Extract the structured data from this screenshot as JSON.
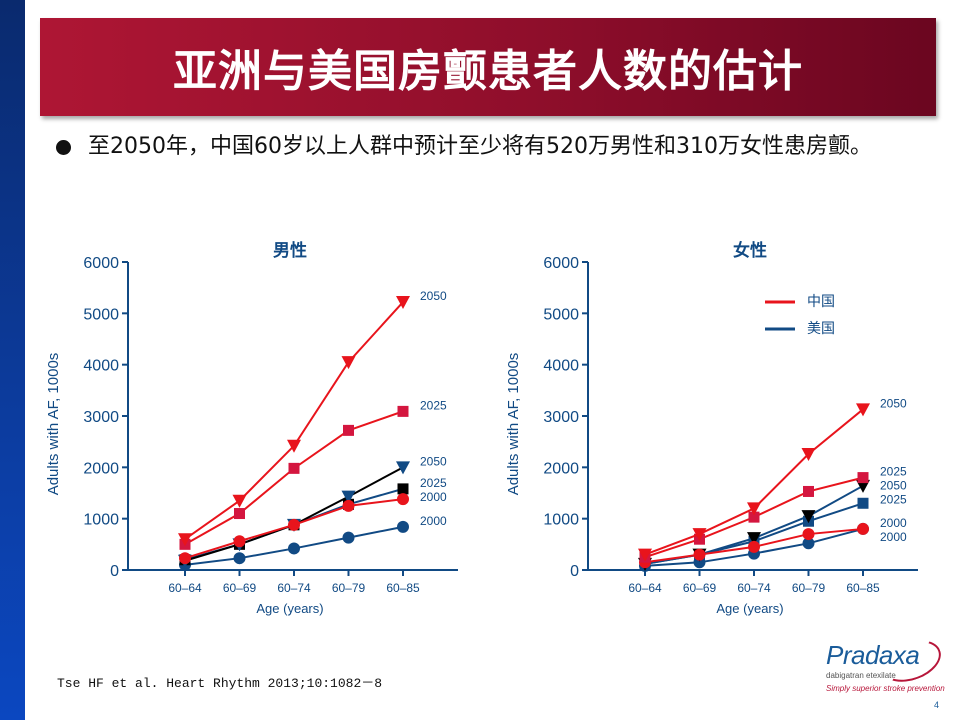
{
  "slide": {
    "title": "亚洲与美国房颤患者人数的估计",
    "bullet": "至2050年，中国60岁以上人群中预计至少将有520万男性和310万女性患房颤。",
    "citation": "Tse HF et al. Heart Rhythm 2013;10:1082－8",
    "page_number": "4",
    "logo": {
      "name": "Pradaxa",
      "subtitle": "dabigatran etexilate",
      "tagline": "Simply superior stroke prevention"
    }
  },
  "colors": {
    "china": "#e8141c",
    "china_marker": "#d4163f",
    "usa": "#114a84",
    "usa_alt": "#000000",
    "axis": "#114a84",
    "title_band": "#9a1030",
    "side_bar": "#0c3b9c"
  },
  "legend": {
    "china": "中国",
    "usa": "美国"
  },
  "chart_data": [
    {
      "type": "line",
      "title": "男性",
      "xlabel": "Age (years)",
      "ylabel": "Adults with AF, 1000s",
      "categories": [
        "60–64",
        "60–69",
        "60–74",
        "60–79",
        "60–85"
      ],
      "ylim": [
        0,
        6000
      ],
      "yticks": [
        0,
        1000,
        2000,
        3000,
        4000,
        5000,
        6000
      ],
      "grid": false,
      "legend": "none",
      "series": [
        {
          "name": "中国 2050",
          "country": "china",
          "year_label": "2050",
          "marker": "triangle-down",
          "values": [
            600,
            1350,
            2420,
            4050,
            5220
          ]
        },
        {
          "name": "中国 2025",
          "country": "china",
          "year_label": "2025",
          "marker": "square",
          "values": [
            500,
            1100,
            1980,
            2720,
            3090
          ]
        },
        {
          "name": "中国 2000",
          "country": "china",
          "year_label": "2000",
          "marker": "circle",
          "values": [
            230,
            560,
            880,
            1250,
            1380
          ]
        },
        {
          "name": "美国 2050",
          "country": "usa",
          "year_label": "2050",
          "marker": "triangle-down",
          "line_color": "black",
          "values": [
            180,
            500,
            880,
            1430,
            2000
          ]
        },
        {
          "name": "美国 2025",
          "country": "usa",
          "year_label": "2025",
          "marker": "square",
          "marker_color": "black",
          "values": [
            200,
            500,
            880,
            1280,
            1580
          ]
        },
        {
          "name": "美国 2000",
          "country": "usa",
          "year_label": "2000",
          "marker": "circle",
          "values": [
            100,
            230,
            420,
            630,
            840
          ]
        }
      ]
    },
    {
      "type": "line",
      "title": "女性",
      "xlabel": "Age (years)",
      "ylabel": "Adults with AF, 1000s",
      "categories": [
        "60–64",
        "60–69",
        "60–74",
        "60–79",
        "60–85"
      ],
      "ylim": [
        0,
        6000
      ],
      "yticks": [
        0,
        1000,
        2000,
        3000,
        4000,
        5000,
        6000
      ],
      "grid": false,
      "legend": "top-right",
      "series": [
        {
          "name": "中国 2050",
          "country": "china",
          "year_label": "2050",
          "marker": "triangle-down",
          "values": [
            300,
            700,
            1200,
            2260,
            3130
          ]
        },
        {
          "name": "中国 2025",
          "country": "china",
          "year_label": "2025",
          "marker": "square",
          "values": [
            250,
            600,
            1030,
            1530,
            1800
          ]
        },
        {
          "name": "中国 2000",
          "country": "china",
          "year_label": "2000",
          "marker": "circle",
          "values": [
            150,
            300,
            450,
            700,
            800
          ]
        },
        {
          "name": "美国 2050",
          "country": "usa",
          "year_label": "2050",
          "marker": "triangle-down",
          "marker_color": "black",
          "values": [
            120,
            300,
            620,
            1050,
            1640
          ]
        },
        {
          "name": "美国 2025",
          "country": "usa",
          "year_label": "2025",
          "marker": "square",
          "values": [
            120,
            300,
            560,
            950,
            1300
          ]
        },
        {
          "name": "美国 2000",
          "country": "usa",
          "year_label": "2000",
          "marker": "circle",
          "values": [
            80,
            150,
            320,
            520,
            800
          ]
        }
      ]
    }
  ]
}
